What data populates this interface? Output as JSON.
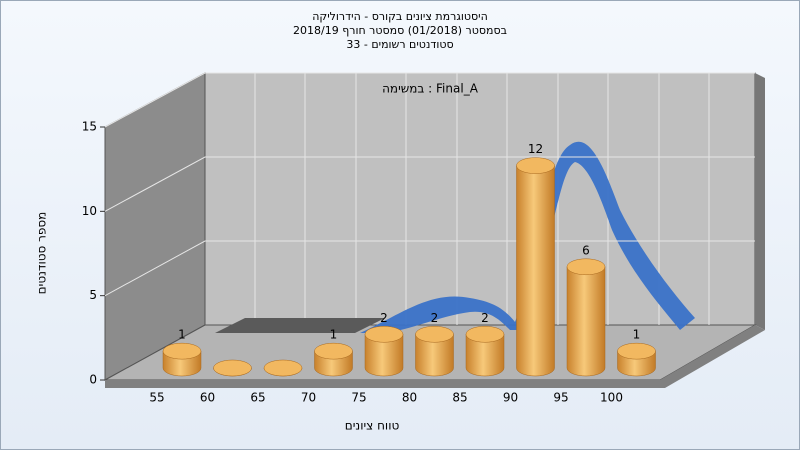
{
  "chart_data": {
    "type": "bar3d",
    "title": [
      "היסטוגרמת ציונים בקורס - הידרוליקה",
      "בסמסטר  (01/2018)  סמסטר חורף 2018/19",
      "סטודנטים רשומים - 33"
    ],
    "subtitle": "במשימה : Final_A",
    "x_label": "טווח ציונים",
    "y_label": "מספר סטודנטים",
    "categories": [
      "55",
      "60",
      "65",
      "70",
      "75",
      "80",
      "85",
      "90",
      "95",
      "100"
    ],
    "values": [
      1,
      0,
      0,
      1,
      2,
      2,
      2,
      12,
      6,
      1
    ],
    "color": "#e8a74c",
    "ylim": [
      0,
      15
    ],
    "yticks": [
      0,
      5,
      10,
      15
    ],
    "grid": true
  }
}
